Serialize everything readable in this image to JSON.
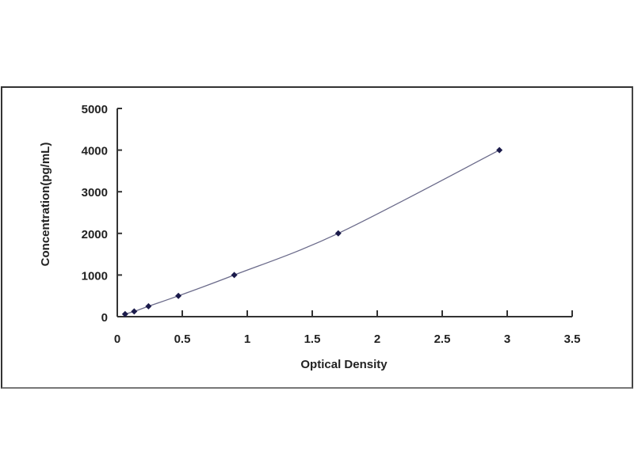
{
  "chart_data": {
    "type": "scatter",
    "title": "",
    "xlabel": "Optical Density",
    "ylabel": "Concentration(pg/mL)",
    "xlim": [
      0,
      3.5
    ],
    "ylim": [
      0,
      5000
    ],
    "x_ticks": [
      "0",
      "0.5",
      "1",
      "1.5",
      "2",
      "2.5",
      "3",
      "3.5"
    ],
    "y_ticks": [
      "0",
      "1000",
      "2000",
      "3000",
      "4000",
      "5000"
    ],
    "grid": false,
    "legend": "none",
    "fit_curve": true,
    "colors": {
      "points": "#1a1a4a",
      "curve": "#6a6a8a",
      "axes": "#333333"
    },
    "series": [
      {
        "x": [
          0.06,
          0.13,
          0.24,
          0.47,
          0.9,
          1.7,
          2.94
        ],
        "y": [
          62.5,
          125,
          250,
          500,
          1000,
          2000,
          4000
        ]
      }
    ]
  }
}
